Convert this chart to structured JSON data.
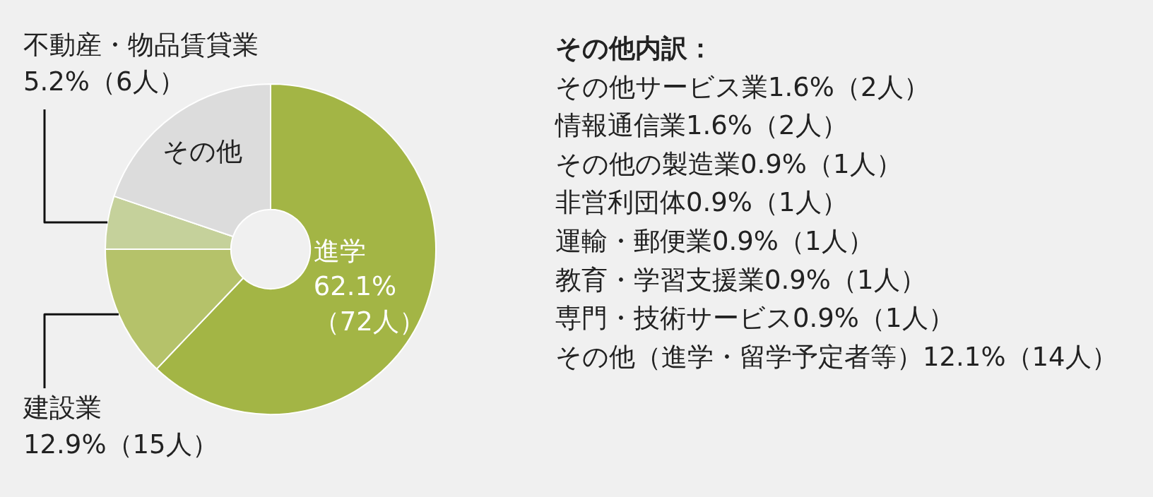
{
  "chart_data": {
    "type": "donut",
    "categories": [
      "進学",
      "建設業",
      "不動産・物品賃貸業",
      "その他"
    ],
    "values": [
      62.1,
      12.9,
      5.2,
      19.8
    ],
    "colors": [
      "#a3b545",
      "#b5c26a",
      "#c5d19b",
      "#dcdcdc"
    ],
    "value_labels": [
      "62.1%（72人）",
      "12.9%（15人）",
      "5.2%（6人）",
      null
    ],
    "annotations": [
      "その他内訳：",
      "その他サービス業1.6%（2人）",
      "情報通信業1.6%（2人）",
      "その他の製造業0.9%（1人）",
      "非営利団体0.9%（1人）",
      "運輸・郵便業0.9%（1人）",
      "教育・学習支援業0.9%（1人）",
      "専門・技術サービス0.9%（1人）",
      "その他（進学・留学予定者等）12.1%（14人）"
    ]
  }
}
